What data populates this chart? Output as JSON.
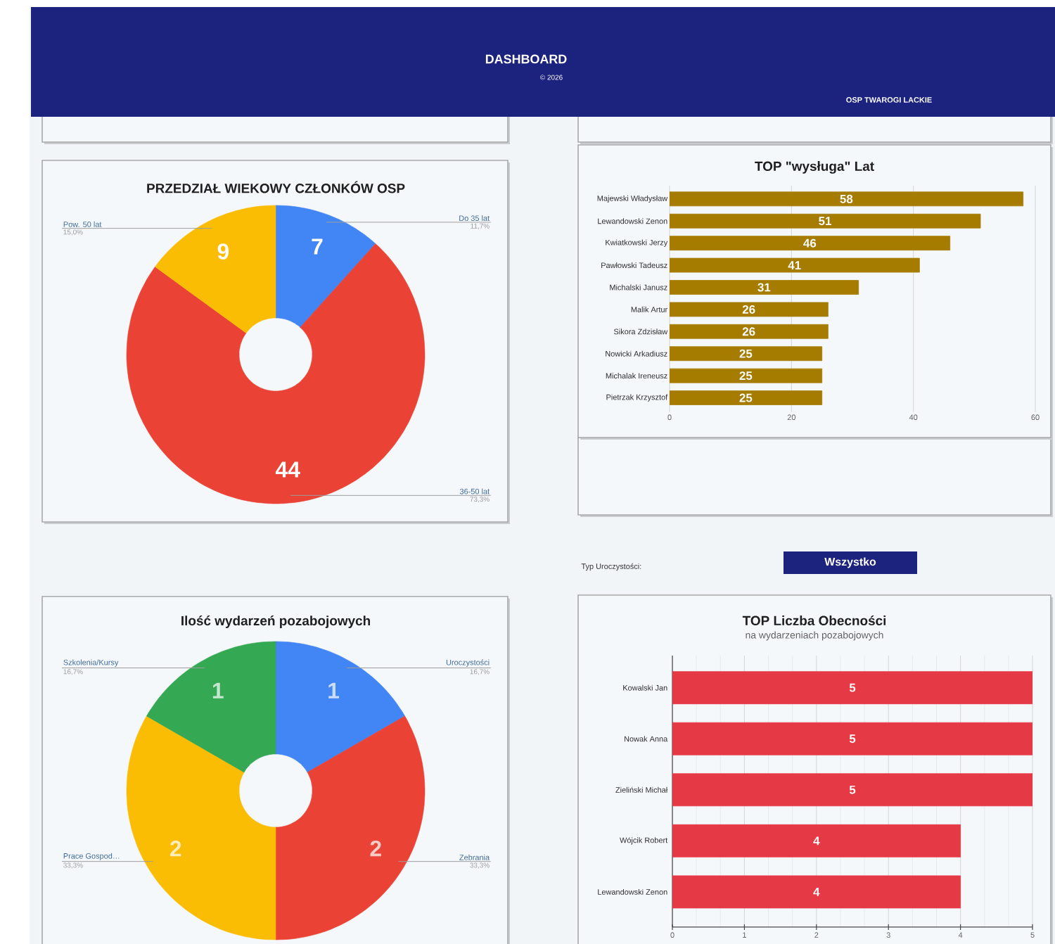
{
  "chart_data": [
    {
      "type": "other",
      "title": "DASHBOARD",
      "annotations": [
        "© 2026",
        "OSP TWAROGI LACKIE"
      ]
    },
    {
      "type": "donut",
      "title": "PRZEDZIAŁ WIEKOWY CZŁONKÓW OSP",
      "categories": [
        "Do 35 lat",
        "36-50 lat",
        "Pow. 50 lat"
      ],
      "values": [
        7,
        44,
        9
      ],
      "colors": [
        "#4285f4",
        "#ea4335",
        "#fbbc04"
      ],
      "data_labels": true,
      "annotations": [
        "11,7%",
        "73,3%",
        "15,0%"
      ]
    },
    {
      "type": "bar",
      "orientation": "horizontal",
      "title": "TOP \"wysługa\" Lat",
      "categories": [
        "Majewski Władysław",
        "Lewandowski Zenon",
        "Kwiatkowski Jerzy",
        "Pawłowski Tadeusz",
        "Michalski Janusz",
        "Malik Artur",
        "Sikora Zdzisław",
        "Nowicki Arkadiusz",
        "Michalak Ireneusz",
        "Pietrzak Krzysztof"
      ],
      "values": [
        58,
        51,
        46,
        41,
        31,
        26,
        26,
        25,
        25,
        25
      ],
      "color": "#a67c00",
      "xlim": [
        0,
        60
      ],
      "xticks": [
        0,
        20,
        40,
        60
      ],
      "grid": "x",
      "data_labels": true
    },
    {
      "type": "other",
      "annotations": [
        "Typ Uroczystości:",
        "Wszystko"
      ]
    },
    {
      "type": "donut",
      "title": "Ilość wydarzeń pozabojowych",
      "categories": [
        "Uroczystości",
        "Zebrania",
        "Prace Gospod…",
        "Szkolenia/Kursy"
      ],
      "values": [
        1,
        2,
        2,
        1
      ],
      "colors": [
        "#4285f4",
        "#ea4335",
        "#fbbc04",
        "#34a853"
      ],
      "data_labels": true,
      "annotations": [
        "16,7%",
        "33,3%",
        "33,3%",
        "16,7%"
      ]
    },
    {
      "type": "bar",
      "orientation": "horizontal",
      "title": "TOP Liczba Obecności",
      "subtitle": "na wydarzeniach pozabojowych",
      "categories": [
        "Kowalski Jan",
        "Nowak Anna",
        "Zieliński Michał",
        "Wójcik Robert",
        "Lewandowski Zenon"
      ],
      "values": [
        5,
        5,
        5,
        4,
        4
      ],
      "color": "#e63946",
      "xlim": [
        0,
        5
      ],
      "xticks": [
        0,
        1,
        2,
        3,
        4,
        5
      ],
      "grid": "x",
      "data_labels": true
    }
  ]
}
